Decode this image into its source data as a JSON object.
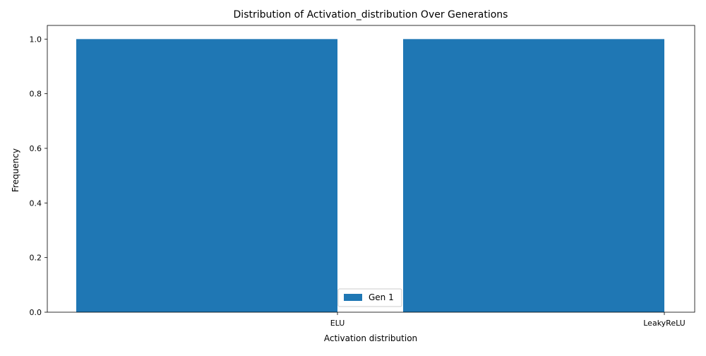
{
  "chart_data": {
    "type": "bar",
    "title": "Distribution of Activation_distribution Over Generations",
    "xlabel": "Activation distribution",
    "ylabel": "Frequency",
    "categories": [
      "ELU",
      "LeakyReLU"
    ],
    "series": [
      {
        "name": "Gen 1",
        "values": [
          1,
          1
        ],
        "color": "#1f77b4"
      }
    ],
    "ylim": [
      0,
      1.05
    ],
    "yticks": [
      "0.0",
      "0.2",
      "0.4",
      "0.6",
      "0.8",
      "1.0"
    ],
    "ytick_values": [
      0,
      0.2,
      0.4,
      0.6,
      0.8,
      1.0
    ],
    "grid": false,
    "legend_position": "lower-center"
  }
}
